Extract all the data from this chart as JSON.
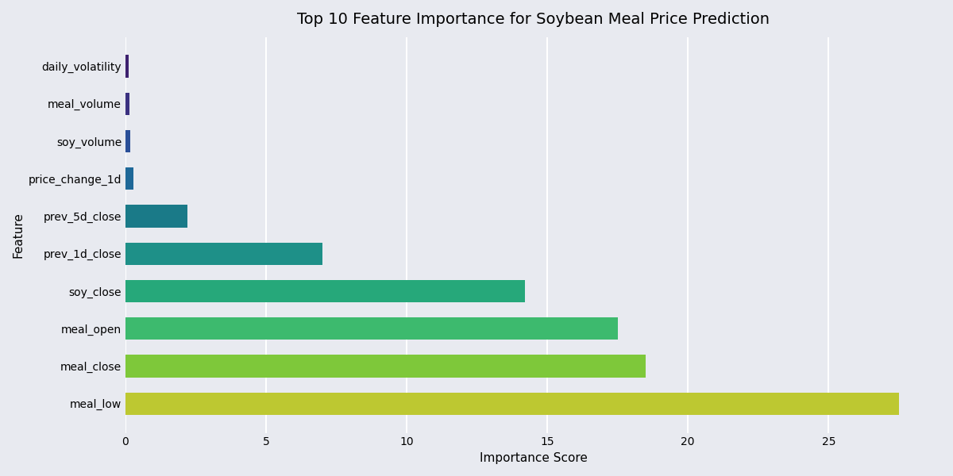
{
  "title": "Top 10 Feature Importance for Soybean Meal Price Prediction",
  "xlabel": "Importance Score",
  "ylabel": "Feature",
  "features": [
    "meal_low",
    "meal_close",
    "meal_open",
    "soy_close",
    "prev_1d_close",
    "prev_5d_close",
    "price_change_1d",
    "soy_volume",
    "meal_volume",
    "daily_volatility"
  ],
  "values": [
    27.5,
    18.5,
    17.5,
    14.2,
    7.0,
    2.2,
    0.28,
    0.18,
    0.15,
    0.12
  ],
  "bar_colors": [
    "#bdc831",
    "#7ec83a",
    "#3dba6e",
    "#26a87a",
    "#1e9088",
    "#1a7a88",
    "#1e6898",
    "#2a4f98",
    "#3a3080",
    "#3d206e"
  ],
  "background_color": "#e8eaf0",
  "grid_color": "white",
  "xlim": [
    0,
    29
  ],
  "title_fontsize": 14,
  "label_fontsize": 11,
  "tick_fontsize": 10
}
